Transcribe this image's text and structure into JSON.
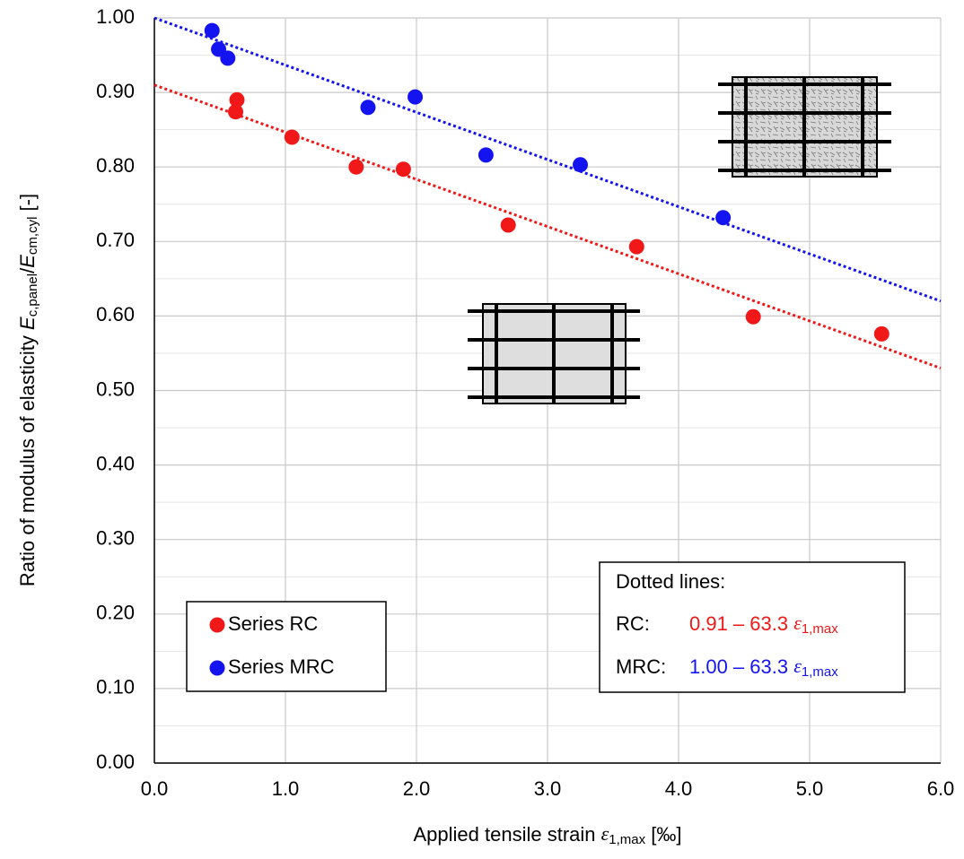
{
  "chart_data": {
    "type": "scatter",
    "xlabel": {
      "text": "Applied tensile strain ",
      "symbol": "ε",
      "sub": "1,max",
      "unit": " [‰]"
    },
    "ylabel": {
      "text": "Ratio of modulus of elasticity ",
      "e1": "E",
      "sub1": "c,panel",
      "slash": "/",
      "e2": "E",
      "sub2": "cm,cyl",
      "unit": " [-]"
    },
    "xlim": [
      0,
      6
    ],
    "ylim": [
      0,
      1
    ],
    "xticks": [
      {
        "value": 0,
        "label": "0.0"
      },
      {
        "value": 1,
        "label": "1.0"
      },
      {
        "value": 2,
        "label": "2.0"
      },
      {
        "value": 3,
        "label": "3.0"
      },
      {
        "value": 4,
        "label": "4.0"
      },
      {
        "value": 5,
        "label": "5.0"
      },
      {
        "value": 6,
        "label": "6.0"
      }
    ],
    "yticks": [
      {
        "value": 0,
        "label": "0.00"
      },
      {
        "value": 0.1,
        "label": "0.10"
      },
      {
        "value": 0.2,
        "label": "0.20"
      },
      {
        "value": 0.3,
        "label": "0.30"
      },
      {
        "value": 0.4,
        "label": "0.40"
      },
      {
        "value": 0.5,
        "label": "0.50"
      },
      {
        "value": 0.6,
        "label": "0.60"
      },
      {
        "value": 0.7,
        "label": "0.70"
      },
      {
        "value": 0.8,
        "label": "0.80"
      },
      {
        "value": 0.9,
        "label": "0.90"
      },
      {
        "value": 1,
        "label": "1.00"
      }
    ],
    "yminor": [
      0.05,
      0.15,
      0.25,
      0.35,
      0.45,
      0.55,
      0.65,
      0.75,
      0.85,
      0.95
    ],
    "grid": true,
    "series": [
      {
        "name": "Series RC",
        "color": "#f01818",
        "x": [
          0.62,
          0.63,
          1.05,
          1.54,
          1.9,
          2.7,
          3.68,
          4.57,
          5.55
        ],
        "values": [
          0.874,
          0.89,
          0.84,
          0.8,
          0.797,
          0.722,
          0.693,
          0.599,
          0.576
        ],
        "trend": {
          "x": [
            0,
            6
          ],
          "values": [
            0.91,
            0.53
          ]
        }
      },
      {
        "name": "Series MRC",
        "color": "#1414f0",
        "x": [
          0.44,
          0.49,
          0.56,
          1.63,
          1.99,
          2.53,
          3.25,
          4.34
        ],
        "values": [
          0.983,
          0.958,
          0.946,
          0.88,
          0.894,
          0.816,
          0.803,
          0.732
        ],
        "trend": {
          "x": [
            0,
            6
          ],
          "values": [
            1.0,
            0.62
          ]
        }
      }
    ],
    "annotation": {
      "title": "Dotted lines:",
      "rows": [
        {
          "label": "RC:",
          "formula": "0.91 – 63.3 ",
          "symbol": "ε",
          "sub": "1,max"
        },
        {
          "label": "MRC:",
          "formula": "1.00 – 63.3 ",
          "symbol": "ε",
          "sub": "1,max"
        }
      ]
    }
  }
}
